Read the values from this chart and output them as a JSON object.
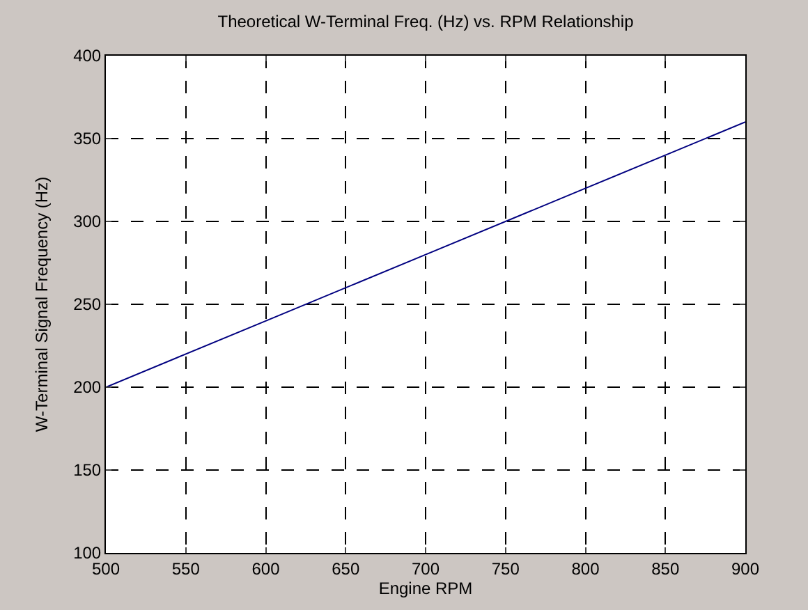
{
  "chart_data": {
    "type": "line",
    "title": "Theoretical W-Terminal Freq. (Hz) vs. RPM Relationship",
    "xlabel": "Engine RPM",
    "ylabel": "W-Terminal Signal Frequency (Hz)",
    "x": [
      500,
      600,
      700,
      800,
      900
    ],
    "series": [
      {
        "color": "#000080",
        "values": [
          200,
          240,
          280,
          320,
          360
        ]
      }
    ],
    "xlim": [
      500,
      900
    ],
    "xticks": [
      500,
      550,
      600,
      650,
      700,
      750,
      800,
      850,
      900
    ],
    "ylim": [
      100,
      400
    ],
    "yticks": [
      100,
      150,
      200,
      250,
      300,
      350,
      400
    ],
    "grid": true,
    "line_style": "solid",
    "marker": "none"
  }
}
